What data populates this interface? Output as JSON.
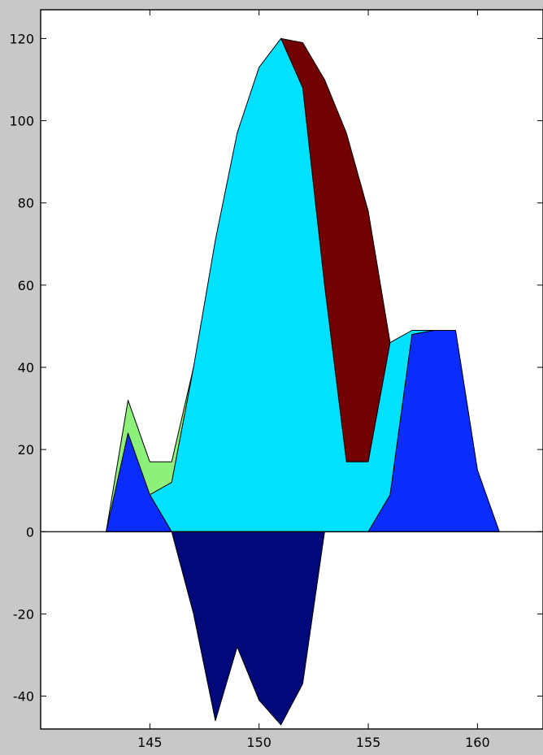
{
  "chart_data": {
    "type": "area",
    "title": "",
    "xlabel": "",
    "ylabel": "",
    "xlim": [
      140,
      163
    ],
    "ylim": [
      -48,
      127
    ],
    "grid": false,
    "legend": "none",
    "x_ticks": [
      145,
      150,
      155,
      160
    ],
    "y_ticks": [
      -40,
      -20,
      0,
      20,
      40,
      60,
      80,
      100,
      120
    ],
    "background": "#c8c8c8",
    "plot_background": "#ffffff",
    "series": [
      {
        "color": "#8cf07a",
        "points": [
          [
            143,
            0
          ],
          [
            144,
            32
          ],
          [
            145,
            17
          ],
          [
            146,
            17
          ],
          [
            147,
            40
          ],
          [
            146,
            0
          ]
        ]
      },
      {
        "color": "#0a2cff",
        "points": [
          [
            143,
            0
          ],
          [
            144,
            24
          ],
          [
            145,
            9
          ],
          [
            146,
            0
          ],
          [
            155,
            0
          ],
          [
            156,
            9
          ],
          [
            157,
            48
          ],
          [
            158,
            49
          ],
          [
            159,
            49
          ],
          [
            160,
            15
          ],
          [
            161,
            0
          ]
        ]
      },
      {
        "color": "#720000",
        "points": [
          [
            151,
            120
          ],
          [
            152,
            119
          ],
          [
            153,
            110
          ],
          [
            154,
            97
          ],
          [
            155,
            78
          ],
          [
            156,
            46
          ],
          [
            155,
            17
          ],
          [
            154,
            17
          ],
          [
            152.5,
            60
          ],
          [
            152,
            108
          ]
        ]
      },
      {
        "color": "#00e0ff",
        "points": [
          [
            145,
            9
          ],
          [
            146,
            12
          ],
          [
            147,
            40
          ],
          [
            148,
            71
          ],
          [
            149,
            97
          ],
          [
            150,
            113
          ],
          [
            151,
            120
          ],
          [
            152,
            108
          ],
          [
            153,
            60
          ],
          [
            154,
            17
          ],
          [
            155,
            17
          ],
          [
            156,
            46
          ],
          [
            157,
            49
          ],
          [
            158,
            49
          ],
          [
            157,
            48
          ],
          [
            156,
            9
          ],
          [
            155,
            0
          ],
          [
            146,
            0
          ]
        ]
      },
      {
        "color": "#00087a",
        "points": [
          [
            146,
            0
          ],
          [
            147,
            -20
          ],
          [
            148,
            -46
          ],
          [
            149,
            -28
          ],
          [
            150,
            -41
          ],
          [
            151,
            -47
          ],
          [
            152,
            -37
          ],
          [
            153,
            0
          ]
        ]
      }
    ]
  }
}
